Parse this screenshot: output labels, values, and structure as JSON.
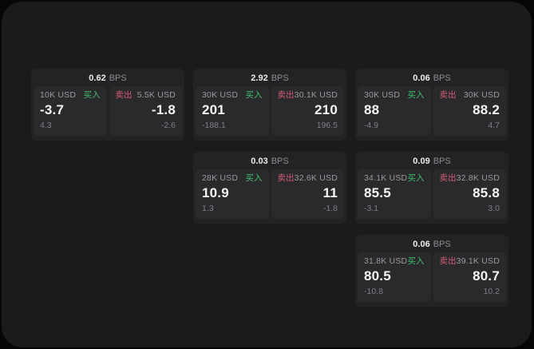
{
  "labels": {
    "bps_unit": "BPS",
    "buy": "买入",
    "sell": "卖出"
  },
  "colors": {
    "screen_bg": "#1b1b1d",
    "card_bg": "#232325",
    "tile_bg": "#2a2a2d",
    "buy_green": "#3fbf6f",
    "sell_red": "#d25a73",
    "value_white": "#f5f5f6",
    "muted_gray": "#9b9b9f"
  },
  "cards": [
    {
      "bps": "0.62",
      "buy": {
        "amount": "10K USD",
        "price": "-3.7",
        "sub": "4.3"
      },
      "sell": {
        "amount": "5.5K USD",
        "price": "-1.8",
        "sub": "-2.6"
      }
    },
    {
      "bps": "2.92",
      "buy": {
        "amount": "30K USD",
        "price": "201",
        "sub": "-188.1"
      },
      "sell": {
        "amount": "30.1K USD",
        "price": "210",
        "sub": "196.5"
      }
    },
    {
      "bps": "0.06",
      "buy": {
        "amount": "30K USD",
        "price": "88",
        "sub": "-4.9"
      },
      "sell": {
        "amount": "30K USD",
        "price": "88.2",
        "sub": "4.7"
      }
    },
    {
      "bps": "0.03",
      "buy": {
        "amount": "28K USD",
        "price": "10.9",
        "sub": "1.3"
      },
      "sell": {
        "amount": "32.6K USD",
        "price": "11",
        "sub": "-1.8"
      }
    },
    {
      "bps": "0.09",
      "buy": {
        "amount": "34.1K USD",
        "price": "85.5",
        "sub": "-3.1"
      },
      "sell": {
        "amount": "32.8K USD",
        "price": "85.8",
        "sub": "3.0"
      }
    },
    {
      "bps": "0.06",
      "buy": {
        "amount": "31.8K USD",
        "price": "80.5",
        "sub": "-10.8"
      },
      "sell": {
        "amount": "39.1K USD",
        "price": "80.7",
        "sub": "10.2"
      }
    }
  ]
}
